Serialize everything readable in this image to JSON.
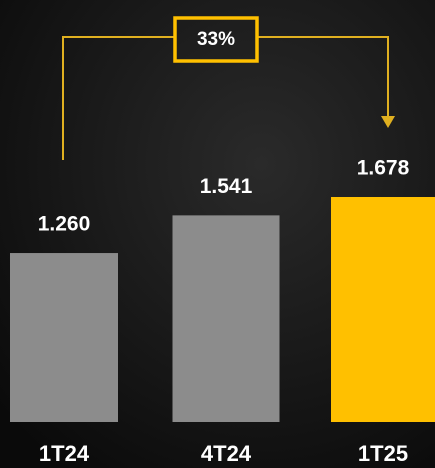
{
  "chart_data": {
    "type": "bar",
    "annotation": "33%",
    "categories": [
      "1T24",
      "4T24",
      "1T25"
    ],
    "values": [
      1.26,
      1.541,
      1.678
    ],
    "value_labels": [
      "1.260",
      "1.541",
      "1.678"
    ],
    "colors": [
      "#8c8c8c",
      "#8c8c8c",
      "#ffc000"
    ]
  }
}
